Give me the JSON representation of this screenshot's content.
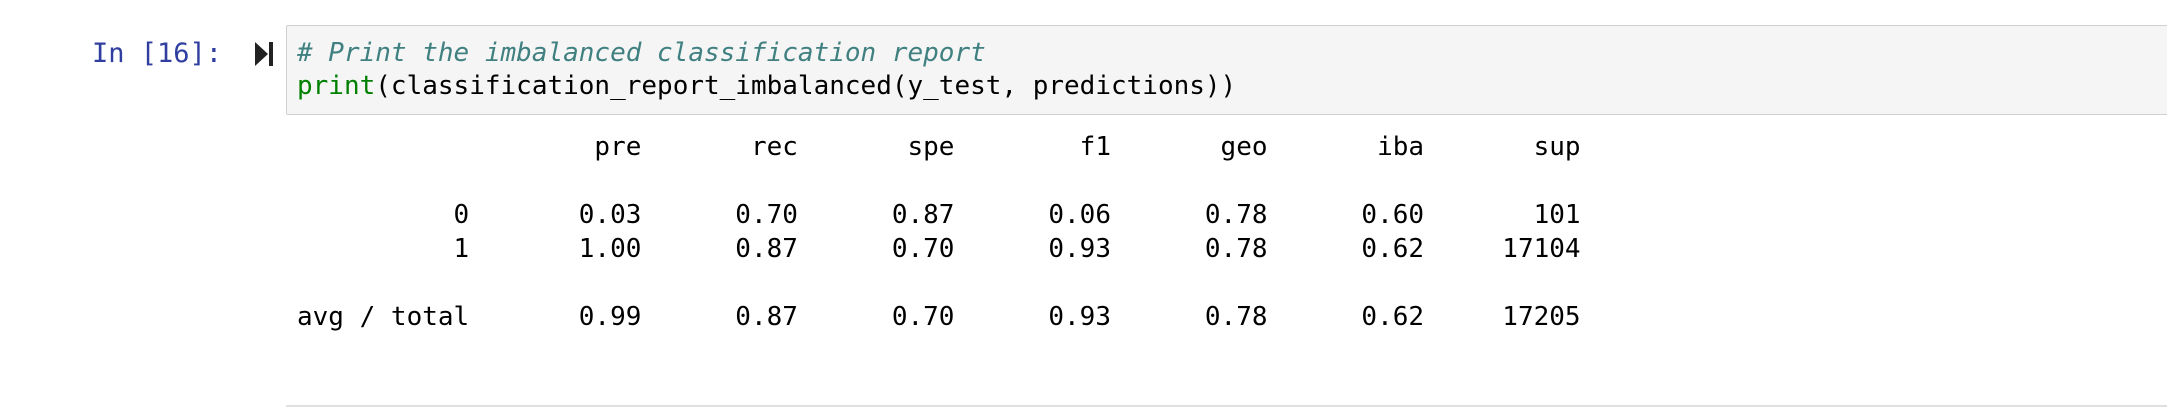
{
  "cell": {
    "prompt": "In [16]:",
    "code": {
      "comment": "# Print the imbalanced classification report",
      "builtin": "print",
      "call_rest": "(classification_report_imbalanced(y_test, predictions))"
    },
    "output": {
      "lines": [
        "                   pre       rec       spe        f1       geo       iba       sup",
        "",
        "          0       0.03      0.70      0.87      0.06      0.78      0.60       101",
        "          1       1.00      0.87      0.70      0.93      0.78      0.62     17104",
        "",
        "avg / total       0.99      0.87      0.70      0.93      0.78      0.62     17205"
      ]
    }
  },
  "colors": {
    "prompt": "#303f9f",
    "comment": "#408080",
    "builtin": "#008000",
    "input_background": "#f5f5f5",
    "input_border": "#d0d0d0"
  },
  "icons": {
    "run": "run-cell-icon"
  }
}
